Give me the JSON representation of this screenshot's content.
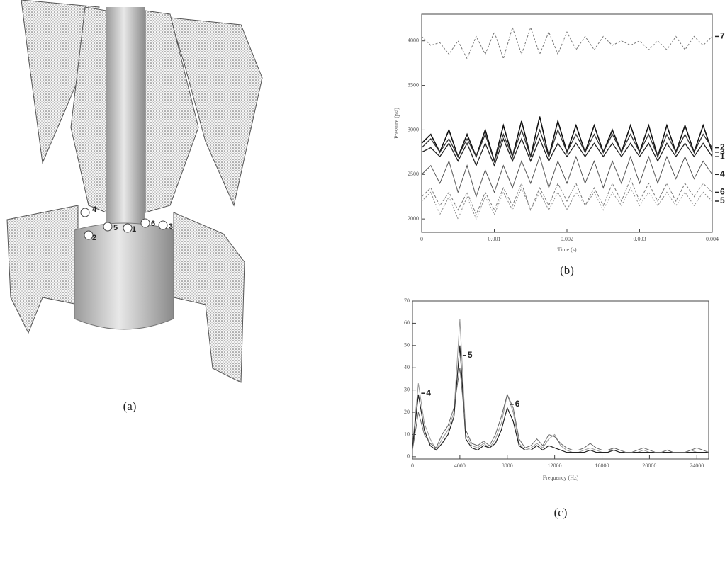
{
  "figure_a": {
    "caption": "(a)",
    "probe_labels": [
      "4",
      "5",
      "2",
      "6",
      "3",
      "1"
    ]
  },
  "chart_data": [
    {
      "type": "line",
      "caption": "(b)",
      "xlabel": "Time (s)",
      "ylabel": "Pressure (psi)",
      "xlim": [
        0,
        0.004
      ],
      "ylim": [
        1850,
        4300
      ],
      "xticks": [
        0,
        0.001,
        0.002,
        0.003,
        0.004
      ],
      "yticks": [
        2000,
        2500,
        3000,
        3500,
        4000
      ],
      "x": [
        0,
        0.000125,
        0.00025,
        0.000375,
        0.0005,
        0.000625,
        0.00075,
        0.000875,
        0.001,
        0.001125,
        0.00125,
        0.001375,
        0.0015,
        0.001625,
        0.00175,
        0.001875,
        0.002,
        0.002125,
        0.00225,
        0.002375,
        0.0025,
        0.002625,
        0.00275,
        0.002875,
        0.003,
        0.003125,
        0.00325,
        0.003375,
        0.0035,
        0.003625,
        0.00375,
        0.003875,
        0.004
      ],
      "series": [
        {
          "name": "7",
          "color": "#777777",
          "values": [
            4050,
            3950,
            3980,
            3850,
            4000,
            3800,
            4050,
            3850,
            4100,
            3800,
            4150,
            3850,
            4150,
            3850,
            4100,
            3850,
            4100,
            3900,
            4050,
            3900,
            4050,
            3950,
            4000,
            3950,
            4000,
            3900,
            4000,
            3900,
            4050,
            3900,
            4050,
            3950,
            4050
          ]
        },
        {
          "name": "3",
          "color": "#111111",
          "values": [
            2850,
            2950,
            2750,
            3000,
            2700,
            2950,
            2700,
            3000,
            2650,
            3050,
            2700,
            3100,
            2700,
            3150,
            2700,
            3100,
            2750,
            3050,
            2750,
            3050,
            2750,
            3000,
            2750,
            3050,
            2750,
            3050,
            2700,
            3050,
            2750,
            3050,
            2750,
            3050,
            2750
          ]
        },
        {
          "name": "2",
          "color": "#333333",
          "values": [
            2800,
            2900,
            2750,
            2900,
            2700,
            2900,
            2700,
            2950,
            2650,
            2950,
            2700,
            3000,
            2700,
            3000,
            2700,
            3000,
            2750,
            2950,
            2750,
            2950,
            2750,
            2950,
            2750,
            2950,
            2750,
            2950,
            2700,
            2950,
            2750,
            2950,
            2750,
            2950,
            2800
          ]
        },
        {
          "name": "1",
          "color": "#222222",
          "values": [
            2750,
            2800,
            2700,
            2850,
            2650,
            2850,
            2600,
            2850,
            2600,
            2900,
            2650,
            2900,
            2650,
            2900,
            2650,
            2850,
            2700,
            2850,
            2700,
            2850,
            2700,
            2850,
            2700,
            2850,
            2700,
            2850,
            2650,
            2850,
            2700,
            2850,
            2700,
            2850,
            2700
          ]
        },
        {
          "name": "4",
          "color": "#555555",
          "values": [
            2500,
            2600,
            2400,
            2650,
            2300,
            2600,
            2250,
            2550,
            2300,
            2600,
            2350,
            2650,
            2400,
            2700,
            2350,
            2650,
            2400,
            2700,
            2400,
            2650,
            2350,
            2650,
            2400,
            2700,
            2400,
            2700,
            2400,
            2700,
            2450,
            2700,
            2450,
            2650,
            2500
          ]
        },
        {
          "name": "6",
          "color": "#777777",
          "values": [
            2250,
            2350,
            2150,
            2300,
            2100,
            2300,
            2050,
            2300,
            2100,
            2350,
            2150,
            2400,
            2100,
            2350,
            2150,
            2400,
            2200,
            2400,
            2150,
            2350,
            2150,
            2400,
            2200,
            2450,
            2200,
            2400,
            2200,
            2400,
            2200,
            2400,
            2250,
            2400,
            2300
          ]
        },
        {
          "name": "5",
          "color": "#888888",
          "values": [
            2200,
            2300,
            2050,
            2250,
            2000,
            2250,
            2000,
            2250,
            2050,
            2300,
            2100,
            2350,
            2100,
            2300,
            2100,
            2300,
            2100,
            2300,
            2150,
            2300,
            2100,
            2300,
            2150,
            2350,
            2150,
            2300,
            2150,
            2300,
            2150,
            2300,
            2150,
            2300,
            2200
          ]
        }
      ]
    },
    {
      "type": "line",
      "caption": "(c)",
      "xlabel": "Frequency (Hz)",
      "xlim": [
        0,
        25000
      ],
      "ylim": [
        -1,
        70
      ],
      "xticks": [
        0,
        4000,
        8000,
        12000,
        16000,
        20000,
        24000
      ],
      "yticks": [
        0,
        10,
        20,
        30,
        40,
        50,
        60,
        70
      ],
      "x": [
        0,
        500,
        1000,
        1500,
        2000,
        2500,
        3000,
        3500,
        4000,
        4500,
        5000,
        5500,
        6000,
        6500,
        7000,
        7500,
        8000,
        8500,
        9000,
        9500,
        10000,
        10500,
        11000,
        11500,
        12000,
        12500,
        13000,
        13500,
        14000,
        14500,
        15000,
        15500,
        16000,
        16500,
        17000,
        17500,
        18000,
        18500,
        19000,
        19500,
        20000,
        20500,
        21000,
        21500,
        22000,
        22500,
        23000,
        23500,
        24000,
        24500,
        25000
      ],
      "series": [
        {
          "name": "4",
          "color": "#999999",
          "values": [
            5,
            33,
            15,
            8,
            3,
            8,
            12,
            20,
            62,
            10,
            5,
            4,
            6,
            4,
            8,
            15,
            28,
            20,
            6,
            3,
            4,
            6,
            4,
            8,
            10,
            5,
            3,
            2,
            2,
            3,
            4,
            3,
            2,
            2,
            4,
            3,
            2,
            2,
            2,
            3,
            2,
            2,
            2,
            3,
            2,
            2,
            2,
            3,
            2,
            2,
            2
          ]
        },
        {
          "name": "5",
          "color": "#222222",
          "values": [
            4,
            28,
            12,
            5,
            3,
            6,
            10,
            18,
            50,
            8,
            4,
            3,
            5,
            4,
            6,
            12,
            22,
            16,
            5,
            3,
            3,
            5,
            3,
            5,
            4,
            3,
            2,
            2,
            2,
            2,
            3,
            2,
            2,
            2,
            3,
            2,
            2,
            2,
            2,
            2,
            2,
            2,
            2,
            2,
            2,
            2,
            2,
            2,
            2,
            2,
            2
          ]
        },
        {
          "name": "6",
          "color": "#666666",
          "values": [
            3,
            20,
            10,
            6,
            4,
            10,
            14,
            22,
            40,
            12,
            6,
            5,
            7,
            5,
            10,
            18,
            28,
            22,
            8,
            4,
            5,
            8,
            5,
            10,
            9,
            6,
            4,
            3,
            3,
            4,
            6,
            4,
            3,
            3,
            4,
            3,
            2,
            2,
            3,
            4,
            3,
            2,
            2,
            3,
            2,
            2,
            2,
            3,
            4,
            3,
            2
          ]
        }
      ]
    }
  ]
}
